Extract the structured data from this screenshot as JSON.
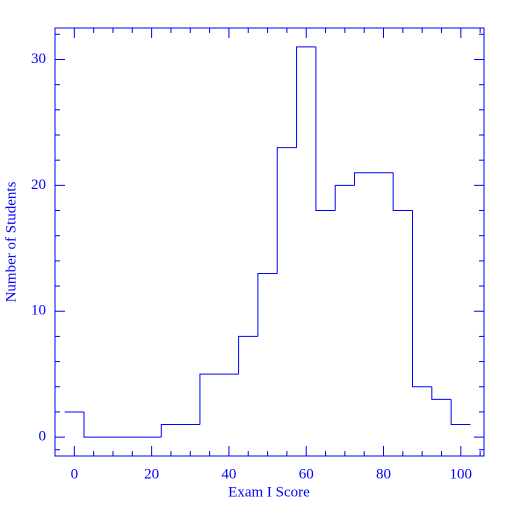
{
  "chart_data": {
    "type": "histogram",
    "xlabel": "Exam I Score",
    "ylabel": "Number of Students",
    "bins": [
      -2.5,
      2.5,
      7.5,
      12.5,
      17.5,
      22.5,
      27.5,
      32.5,
      37.5,
      42.5,
      47.5,
      52.5,
      57.5,
      62.5,
      67.5,
      72.5,
      77.5,
      82.5,
      87.5,
      92.5,
      97.5,
      102.5
    ],
    "counts": [
      2,
      0,
      0,
      0,
      0,
      1,
      1,
      5,
      5,
      8,
      13,
      23,
      31,
      18,
      20,
      21,
      21,
      18,
      4,
      3,
      1
    ],
    "color": "#0000ff",
    "xlim": [
      -5,
      106
    ],
    "ylim": [
      -1.5,
      32.5
    ],
    "xticks": [
      0,
      20,
      40,
      60,
      80,
      100
    ],
    "yticks": [
      0,
      10,
      20,
      30
    ],
    "xminorticks": [
      -5,
      5,
      10,
      15,
      25,
      30,
      35,
      45,
      50,
      55,
      65,
      70,
      75,
      85,
      90,
      95,
      105
    ],
    "yminorticks": [
      -1,
      2,
      4,
      6,
      8,
      12,
      14,
      16,
      18,
      22,
      24,
      26,
      28,
      32
    ]
  }
}
